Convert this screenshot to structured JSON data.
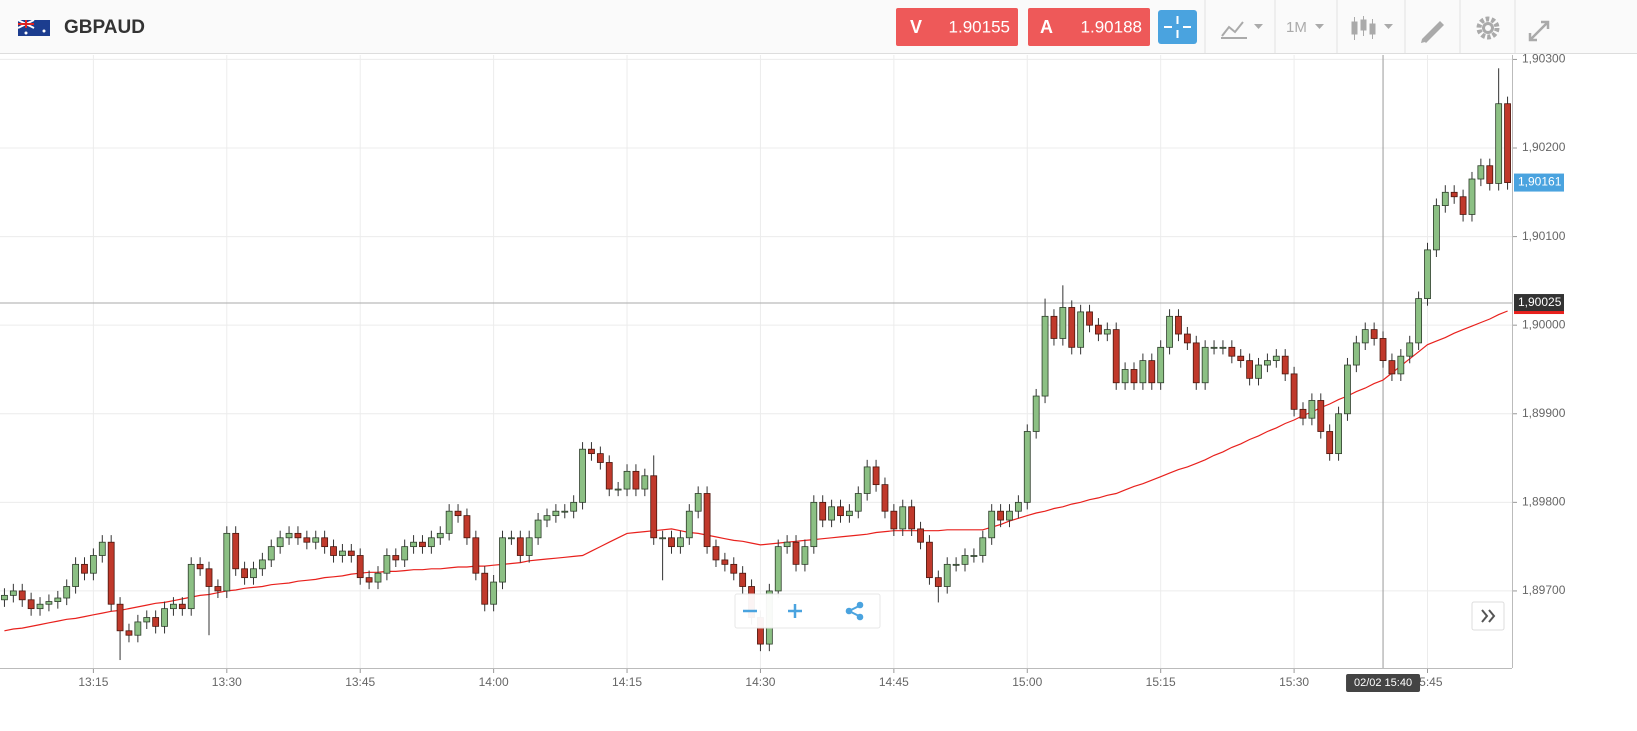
{
  "header": {
    "symbol": "GBPAUD",
    "sell_label": "V",
    "sell_price": "1.90155",
    "buy_label": "A",
    "buy_price": "1.90188",
    "timeframe": "1M"
  },
  "chart_data": {
    "type": "candlestick",
    "categories": [
      null,
      null,
      null,
      null,
      null,
      null,
      null,
      null,
      null,
      null,
      "13:15",
      null,
      null,
      null,
      null,
      null,
      null,
      null,
      null,
      null,
      null,
      null,
      null,
      null,
      null,
      "13:30",
      null,
      null,
      null,
      null,
      null,
      null,
      null,
      null,
      null,
      null,
      null,
      null,
      null,
      null,
      "13:45",
      null,
      null,
      null,
      null,
      null,
      null,
      null,
      null,
      null,
      null,
      null,
      null,
      null,
      null,
      "14:00",
      null,
      null,
      null,
      null,
      null,
      null,
      null,
      null,
      null,
      null,
      null,
      null,
      null,
      null,
      "14:15",
      null,
      null,
      null,
      null,
      null,
      null,
      null,
      null,
      null,
      null,
      null,
      null,
      null,
      null,
      "14:30",
      null,
      null,
      null,
      null,
      null,
      null,
      null,
      null,
      null,
      null,
      null,
      null,
      null,
      null,
      "14:45",
      null,
      null,
      null,
      null,
      null,
      null,
      null,
      null,
      null,
      null,
      null,
      null,
      null,
      null,
      "15:00",
      null,
      null,
      null,
      null,
      null,
      null,
      null,
      null,
      null,
      null,
      null,
      null,
      null,
      null,
      "15:15",
      null,
      null,
      null,
      null,
      null,
      null,
      null,
      null,
      null,
      null,
      null,
      null,
      null,
      null,
      "15:30",
      null,
      null,
      null,
      null,
      null,
      null,
      null,
      null,
      null,
      null,
      null,
      null,
      null,
      null,
      "15:45",
      null,
      null,
      null,
      null,
      null,
      null,
      null,
      null,
      null
    ],
    "open": [
      1.8969,
      1.89695,
      1.897,
      1.8969,
      1.8968,
      1.89685,
      1.89688,
      1.89692,
      1.89705,
      1.8973,
      1.8972,
      1.8974,
      1.89755,
      1.89685,
      1.89655,
      1.8965,
      1.89665,
      1.8967,
      1.8966,
      1.8968,
      1.89685,
      1.8968,
      1.8973,
      1.89725,
      1.89705,
      1.897,
      1.89765,
      1.89725,
      1.89715,
      1.89725,
      1.89735,
      1.8975,
      1.8976,
      1.89765,
      1.8976,
      1.89755,
      1.8976,
      1.8975,
      1.8974,
      1.89745,
      1.8974,
      1.89715,
      1.8971,
      1.8972,
      1.8974,
      1.89735,
      1.8975,
      1.89755,
      1.8975,
      1.8976,
      1.89765,
      1.8979,
      1.89785,
      1.8976,
      1.8972,
      1.89685,
      1.8971,
      1.8976,
      1.8976,
      1.8974,
      1.8976,
      1.8978,
      1.89785,
      1.8979,
      1.8979,
      1.898,
      1.8986,
      1.89855,
      1.89845,
      1.89815,
      1.89815,
      1.89835,
      1.89815,
      1.8983,
      1.8976,
      1.8976,
      1.8975,
      1.8976,
      1.8979,
      1.8981,
      1.8975,
      1.89735,
      1.8973,
      1.8972,
      1.89705,
      1.8967,
      1.8964,
      1.897,
      1.8975,
      1.89755,
      1.8973,
      1.8975,
      1.898,
      1.8978,
      1.89795,
      1.89785,
      1.8979,
      1.8981,
      1.8984,
      1.8982,
      1.8979,
      1.8977,
      1.89795,
      1.8977,
      1.89755,
      1.89715,
      1.89705,
      1.8973,
      1.8973,
      1.8974,
      1.8974,
      1.8976,
      1.8979,
      1.8978,
      1.8979,
      1.898,
      1.8988,
      1.8992,
      1.9001,
      1.89985,
      1.9002,
      1.89975,
      1.90015,
      1.9,
      1.8999,
      1.89995,
      1.89935,
      1.8995,
      1.89935,
      1.8996,
      1.89935,
      1.89975,
      1.9001,
      1.8999,
      1.8998,
      1.89935,
      1.89975,
      1.89975,
      1.89975,
      1.89965,
      1.8996,
      1.8994,
      1.89955,
      1.8996,
      1.89965,
      1.89945,
      1.89905,
      1.89895,
      1.89915,
      1.8988,
      1.89855,
      1.899,
      1.89955,
      1.8998,
      1.89995,
      1.89985,
      1.8996,
      1.89945,
      1.89965,
      1.8998,
      1.9003,
      1.90085,
      1.90135,
      1.9015,
      1.90145,
      1.90125,
      1.90165,
      1.9018,
      1.9016,
      1.9025
    ],
    "high": [
      1.89703,
      1.89708,
      1.89708,
      1.89698,
      1.89693,
      1.89696,
      1.897,
      1.89713,
      1.89738,
      1.89738,
      1.89748,
      1.89763,
      1.89763,
      1.89693,
      1.89663,
      1.89673,
      1.89678,
      1.89678,
      1.89688,
      1.89693,
      1.89693,
      1.89738,
      1.89738,
      1.89733,
      1.89713,
      1.89773,
      1.89773,
      1.89733,
      1.89733,
      1.89743,
      1.89758,
      1.89768,
      1.89773,
      1.89773,
      1.89768,
      1.89768,
      1.89768,
      1.89758,
      1.89753,
      1.89753,
      1.89748,
      1.89723,
      1.89728,
      1.89748,
      1.89748,
      1.89758,
      1.89763,
      1.89763,
      1.89768,
      1.89773,
      1.89798,
      1.89798,
      1.89793,
      1.89768,
      1.89728,
      1.89718,
      1.89768,
      1.89768,
      1.89768,
      1.89768,
      1.89788,
      1.89793,
      1.89798,
      1.89798,
      1.89808,
      1.89868,
      1.89868,
      1.89863,
      1.89853,
      1.89823,
      1.89843,
      1.89843,
      1.89838,
      1.89853,
      1.89768,
      1.89768,
      1.89768,
      1.89798,
      1.89818,
      1.89818,
      1.89758,
      1.89743,
      1.89738,
      1.89728,
      1.89713,
      1.89678,
      1.89708,
      1.89758,
      1.89763,
      1.89763,
      1.89758,
      1.89808,
      1.89808,
      1.89803,
      1.89803,
      1.89798,
      1.89818,
      1.89848,
      1.89848,
      1.89828,
      1.89798,
      1.89803,
      1.89803,
      1.89778,
      1.89763,
      1.89723,
      1.89738,
      1.89738,
      1.89748,
      1.89748,
      1.89768,
      1.89798,
      1.89798,
      1.89798,
      1.89808,
      1.89888,
      1.89928,
      1.9003,
      1.90018,
      1.90045,
      1.90028,
      1.90023,
      1.90023,
      1.90008,
      1.90003,
      1.90003,
      1.89958,
      1.89958,
      1.89968,
      1.89968,
      1.89983,
      1.90018,
      1.90018,
      1.89998,
      1.89988,
      1.89983,
      1.89983,
      1.89983,
      1.89983,
      1.89973,
      1.89968,
      1.89963,
      1.89968,
      1.89973,
      1.89973,
      1.89953,
      1.89913,
      1.89923,
      1.89923,
      1.89888,
      1.89908,
      1.89963,
      1.89988,
      1.90003,
      1.90003,
      1.89993,
      1.89968,
      1.89973,
      1.89988,
      1.90038,
      1.90093,
      1.90143,
      1.90158,
      1.90158,
      1.90153,
      1.90173,
      1.90188,
      1.90188,
      1.9029,
      1.90258
    ],
    "low": [
      1.89682,
      1.89687,
      1.89682,
      1.89672,
      1.89672,
      1.89677,
      1.8968,
      1.89684,
      1.89697,
      1.89712,
      1.89712,
      1.89732,
      1.89677,
      1.89622,
      1.89642,
      1.89642,
      1.89657,
      1.89652,
      1.89652,
      1.89672,
      1.89672,
      1.89672,
      1.89717,
      1.8965,
      1.89692,
      1.89692,
      1.89717,
      1.89707,
      1.89707,
      1.89717,
      1.89727,
      1.89742,
      1.89752,
      1.89752,
      1.89747,
      1.89747,
      1.89742,
      1.89732,
      1.89732,
      1.89732,
      1.89707,
      1.89702,
      1.89702,
      1.89712,
      1.89727,
      1.89727,
      1.89742,
      1.89742,
      1.89742,
      1.89752,
      1.89757,
      1.89777,
      1.89752,
      1.89712,
      1.89677,
      1.89677,
      1.89702,
      1.89752,
      1.89732,
      1.89732,
      1.89752,
      1.89772,
      1.89777,
      1.89782,
      1.89782,
      1.89792,
      1.89847,
      1.89837,
      1.89807,
      1.89807,
      1.89807,
      1.89807,
      1.89807,
      1.89752,
      1.89712,
      1.89742,
      1.89742,
      1.89752,
      1.89782,
      1.89742,
      1.89727,
      1.89722,
      1.89712,
      1.89697,
      1.89662,
      1.89632,
      1.89632,
      1.89692,
      1.89742,
      1.89722,
      1.89722,
      1.89742,
      1.89772,
      1.89772,
      1.89777,
      1.89777,
      1.89782,
      1.89802,
      1.89812,
      1.89782,
      1.89762,
      1.89762,
      1.89762,
      1.89747,
      1.89707,
      1.89687,
      1.89697,
      1.89722,
      1.89722,
      1.89732,
      1.89732,
      1.89752,
      1.89772,
      1.89772,
      1.89782,
      1.89792,
      1.89872,
      1.89912,
      1.89977,
      1.89977,
      1.89967,
      1.89967,
      1.89992,
      1.89982,
      1.89982,
      1.89927,
      1.89927,
      1.89927,
      1.89927,
      1.89927,
      1.89927,
      1.89967,
      1.89982,
      1.89972,
      1.89927,
      1.89927,
      1.89967,
      1.89967,
      1.89957,
      1.89952,
      1.89932,
      1.89932,
      1.89947,
      1.89952,
      1.89937,
      1.89897,
      1.89887,
      1.89887,
      1.89872,
      1.89847,
      1.89847,
      1.89892,
      1.89947,
      1.89972,
      1.89977,
      1.89952,
      1.89937,
      1.89937,
      1.89957,
      1.89972,
      1.90022,
      1.90077,
      1.90127,
      1.90137,
      1.90117,
      1.90117,
      1.90157,
      1.90152,
      1.90152,
      1.90153
    ],
    "close": [
      1.89695,
      1.897,
      1.8969,
      1.8968,
      1.89685,
      1.89688,
      1.89692,
      1.89705,
      1.8973,
      1.8972,
      1.8974,
      1.89755,
      1.89685,
      1.89655,
      1.8965,
      1.89665,
      1.8967,
      1.8966,
      1.8968,
      1.89685,
      1.8968,
      1.8973,
      1.89725,
      1.89705,
      1.897,
      1.89765,
      1.89725,
      1.89715,
      1.89725,
      1.89735,
      1.8975,
      1.8976,
      1.89765,
      1.8976,
      1.89755,
      1.8976,
      1.8975,
      1.8974,
      1.89745,
      1.8974,
      1.89715,
      1.8971,
      1.8972,
      1.8974,
      1.89735,
      1.8975,
      1.89755,
      1.8975,
      1.8976,
      1.89765,
      1.8979,
      1.89785,
      1.8976,
      1.8972,
      1.89685,
      1.8971,
      1.8976,
      1.8976,
      1.8974,
      1.8976,
      1.8978,
      1.89785,
      1.8979,
      1.8979,
      1.898,
      1.8986,
      1.89855,
      1.89845,
      1.89815,
      1.89815,
      1.89835,
      1.89815,
      1.8983,
      1.8976,
      1.8976,
      1.8975,
      1.8976,
      1.8979,
      1.8981,
      1.8975,
      1.89735,
      1.8973,
      1.8972,
      1.89705,
      1.8967,
      1.8964,
      1.897,
      1.8975,
      1.89755,
      1.8973,
      1.8975,
      1.898,
      1.8978,
      1.89795,
      1.89785,
      1.8979,
      1.8981,
      1.8984,
      1.8982,
      1.8979,
      1.8977,
      1.89795,
      1.8977,
      1.89755,
      1.89715,
      1.89705,
      1.8973,
      1.8973,
      1.8974,
      1.8974,
      1.8976,
      1.8979,
      1.8978,
      1.8979,
      1.898,
      1.8988,
      1.8992,
      1.9001,
      1.89985,
      1.9002,
      1.89975,
      1.90015,
      1.9,
      1.8999,
      1.89995,
      1.89935,
      1.8995,
      1.89935,
      1.8996,
      1.89935,
      1.89975,
      1.9001,
      1.8999,
      1.8998,
      1.89935,
      1.89975,
      1.89975,
      1.89975,
      1.89965,
      1.8996,
      1.8994,
      1.89955,
      1.8996,
      1.89965,
      1.89945,
      1.89905,
      1.89895,
      1.89915,
      1.8988,
      1.89855,
      1.899,
      1.89955,
      1.8998,
      1.89995,
      1.89985,
      1.8996,
      1.89945,
      1.89965,
      1.8998,
      1.9003,
      1.90085,
      1.90135,
      1.9015,
      1.90145,
      1.90125,
      1.90165,
      1.9018,
      1.9016,
      1.9025,
      1.90161
    ],
    "up_color": "#8cc084",
    "down_color": "#c0392b",
    "moving_average": {
      "color": "#e8211d",
      "values": [
        1.89655,
        1.89657,
        1.89658,
        1.8966,
        1.89662,
        1.89664,
        1.89666,
        1.89668,
        1.89669,
        1.89671,
        1.89673,
        1.89675,
        1.89677,
        1.89678,
        1.8968,
        1.89682,
        1.89684,
        1.89686,
        1.89687,
        1.89689,
        1.89691,
        1.89693,
        1.89695,
        1.89696,
        1.89698,
        1.897,
        1.89701,
        1.89703,
        1.89704,
        1.89705,
        1.89707,
        1.89708,
        1.89709,
        1.89711,
        1.89712,
        1.89713,
        1.89715,
        1.89716,
        1.89717,
        1.89719,
        1.8972,
        1.89721,
        1.89721,
        1.89722,
        1.89722,
        1.89723,
        1.89724,
        1.89724,
        1.89725,
        1.89725,
        1.89726,
        1.89727,
        1.89727,
        1.89728,
        1.89728,
        1.89729,
        1.8973,
        1.89731,
        1.89732,
        1.89734,
        1.89735,
        1.89736,
        1.89737,
        1.89738,
        1.89739,
        1.8974,
        1.89745,
        1.8975,
        1.89755,
        1.8976,
        1.89765,
        1.89766,
        1.89767,
        1.89768,
        1.89769,
        1.8977,
        1.89768,
        1.89766,
        1.89765,
        1.89763,
        1.89761,
        1.89759,
        1.89757,
        1.89756,
        1.89754,
        1.89752,
        1.89753,
        1.89754,
        1.89755,
        1.89756,
        1.89757,
        1.89758,
        1.89759,
        1.8976,
        1.89761,
        1.89762,
        1.89763,
        1.89764,
        1.89766,
        1.89767,
        1.89768,
        1.89768,
        1.89768,
        1.89768,
        1.89768,
        1.89768,
        1.89769,
        1.89769,
        1.89769,
        1.89769,
        1.89769,
        1.89772,
        1.89775,
        1.89779,
        1.89782,
        1.89785,
        1.89788,
        1.8979,
        1.89793,
        1.89795,
        1.89798,
        1.898,
        1.89803,
        1.89805,
        1.89808,
        1.8981,
        1.89814,
        1.89818,
        1.89821,
        1.89825,
        1.89829,
        1.89833,
        1.89837,
        1.8984,
        1.89844,
        1.89848,
        1.89853,
        1.89857,
        1.89862,
        1.89866,
        1.89871,
        1.89875,
        1.8988,
        1.89884,
        1.89889,
        1.89893,
        1.89898,
        1.89902,
        1.89907,
        1.89911,
        1.89916,
        1.8992,
        1.89925,
        1.89929,
        1.89934,
        1.89938,
        1.89946,
        1.89954,
        1.89962,
        1.8997,
        1.89978,
        1.89982,
        1.89986,
        1.89991,
        1.89995,
        1.89999,
        1.90003,
        1.90007,
        1.90012,
        1.90016
      ]
    },
    "ylim": [
      1.89613,
      1.90305
    ],
    "yticks": [
      {
        "value": 1.897,
        "label": "1,89700"
      },
      {
        "value": 1.898,
        "label": "1,89800"
      },
      {
        "value": 1.899,
        "label": "1,89900"
      },
      {
        "value": 1.9,
        "label": "1,90000"
      },
      {
        "value": 1.901,
        "label": "1,90100"
      },
      {
        "value": 1.902,
        "label": "1,90200"
      },
      {
        "value": 1.903,
        "label": "1,90300"
      }
    ],
    "grid": true,
    "last_price": {
      "value": 1.90161,
      "label": "1,90161"
    },
    "crosshair": {
      "y": {
        "value": 1.90025,
        "label": "1,90025"
      },
      "x_label": "02/02 15:40"
    }
  }
}
